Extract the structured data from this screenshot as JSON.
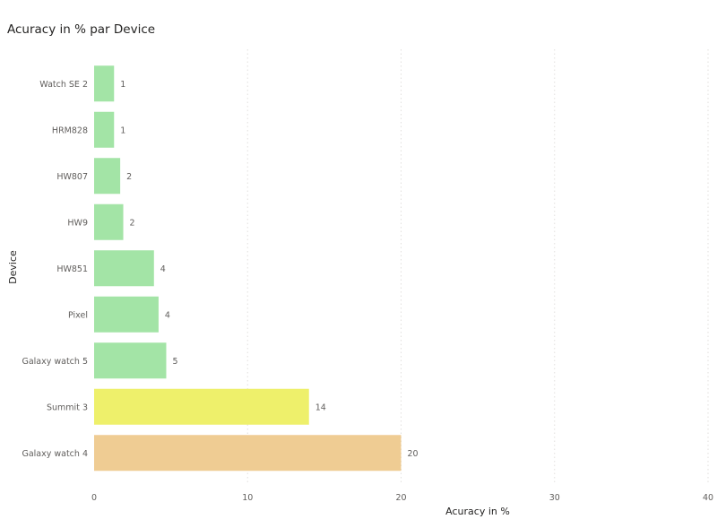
{
  "chart_data": {
    "type": "bar",
    "orientation": "horizontal",
    "title": "Acuracy in % par Device",
    "xlabel": "Acuracy in %",
    "ylabel": "Device",
    "xlim": [
      0,
      40
    ],
    "xticks": [
      "0",
      "10",
      "20",
      "30",
      "40"
    ],
    "grid": "vertical dotted",
    "categories": [
      "Watch SE 2",
      "HRM828",
      "HW807",
      "HW9",
      "HW851",
      "Pixel",
      "Galaxy watch 5",
      "Summit 3",
      "Galaxy watch 4"
    ],
    "values": [
      1.3,
      1.3,
      1.7,
      1.9,
      3.9,
      4.2,
      4.7,
      14,
      20
    ],
    "data_labels": [
      "1",
      "1",
      "2",
      "2",
      "4",
      "4",
      "5",
      "14",
      "20"
    ],
    "colors": [
      "#a3e4a6",
      "#a3e4a6",
      "#a3e4a6",
      "#a3e4a6",
      "#a3e4a6",
      "#a3e4a6",
      "#a3e4a6",
      "#eef06b",
      "#efcc93"
    ]
  }
}
